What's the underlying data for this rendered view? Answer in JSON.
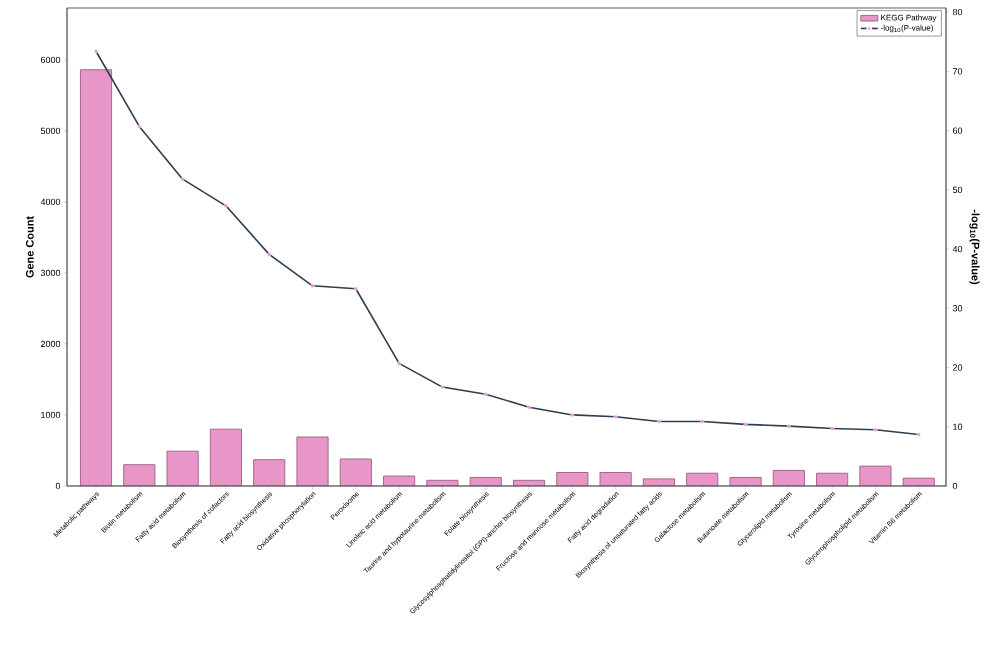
{
  "chart_data": {
    "type": "bar",
    "ylabel": "Gene Count",
    "y2label": "-log$_{10}$(P-value)",
    "categories": [
      "Metabolic pathways",
      "Biotin metabolism",
      "Fatty acid metabolism",
      "Biosynthesis of cofactors",
      "Fatty acid biosynthesis",
      "Oxidative phosphorylation",
      "Peroxisome",
      "Linoleic acid metabolism",
      "Taurine and hypotaurine metabolism",
      "Folate biosynthesis",
      "Glycosylphosphatidylinositol (GPI)-anchor biosynthesis",
      "Fructose and mannose metabolism",
      "Fatty acid degradation",
      "Biosynthesis of unsaturated fatty acids",
      "Galactose metabolism",
      "Butanoate metabolism",
      "Glycerolipid metabolism",
      "Tyrosine metabolism",
      "Glycerophospholipid metabolism",
      "Vitamin B6 metabolism"
    ],
    "series": [
      {
        "name": "KEGG Pathway",
        "color": "#e896c8",
        "values": [
          5860,
          300,
          490,
          800,
          370,
          690,
          380,
          140,
          80,
          120,
          80,
          190,
          190,
          100,
          180,
          120,
          220,
          180,
          280,
          110
        ]
      },
      {
        "name": "-log$_{10}$(P-value)",
        "type": "line",
        "axis": "y2",
        "color": "#2e3e50",
        "values": [
          73.4,
          60.7,
          51.8,
          47.3,
          39.1,
          33.8,
          33.3,
          20.7,
          16.7,
          15.5,
          13.3,
          12.0,
          11.7,
          10.9,
          10.9,
          10.4,
          10.1,
          9.7,
          9.5,
          8.7
        ]
      }
    ],
    "ylim": [
      0,
      6730
    ],
    "yticks": [
      0,
      1000,
      2000,
      3000,
      4000,
      5000,
      6000
    ],
    "y2lim": [
      0,
      80.7
    ],
    "y2ticks": [
      0,
      10,
      20,
      30,
      40,
      50,
      60,
      70,
      80
    ],
    "legend": "top right",
    "marker": "circle",
    "line_style": "solid",
    "grid": false
  }
}
